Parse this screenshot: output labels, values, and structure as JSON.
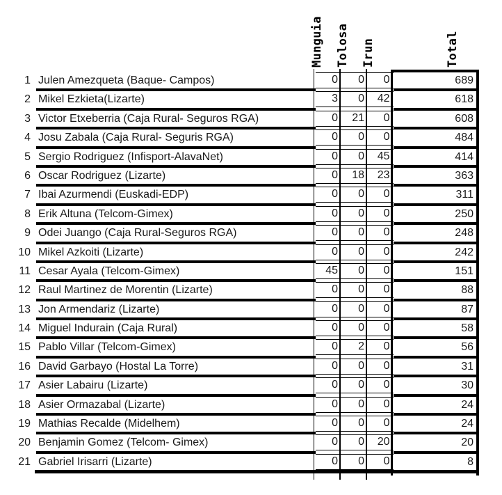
{
  "table": {
    "headers": {
      "munguia": "Munguia",
      "tolosa": "Tolosa",
      "irun": "Irun",
      "total": "Total"
    },
    "rows": [
      {
        "rank": 1,
        "name": "Julen Amezqueta (Baque- Campos)",
        "munguia": 0,
        "tolosa": 0,
        "irun": 0,
        "total": 689
      },
      {
        "rank": 2,
        "name": "Mikel Ezkieta(Lizarte)",
        "munguia": 3,
        "tolosa": 0,
        "irun": 42,
        "total": 618
      },
      {
        "rank": 3,
        "name": "Victor Etxeberria (Caja Rural- Seguros RGA)",
        "munguia": 0,
        "tolosa": 21,
        "irun": 0,
        "total": 608
      },
      {
        "rank": 4,
        "name": "Josu Zabala (Caja Rural- Seguris RGA)",
        "munguia": 0,
        "tolosa": 0,
        "irun": 0,
        "total": 484
      },
      {
        "rank": 5,
        "name": "Sergio Rodriguez (Infisport-AlavaNet)",
        "munguia": 0,
        "tolosa": 0,
        "irun": 45,
        "total": 414
      },
      {
        "rank": 6,
        "name": "Oscar Rodriguez (Lizarte)",
        "munguia": 0,
        "tolosa": 18,
        "irun": 23,
        "total": 363
      },
      {
        "rank": 7,
        "name": "Ibai Azurmendi (Euskadi-EDP)",
        "munguia": 0,
        "tolosa": 0,
        "irun": 0,
        "total": 311
      },
      {
        "rank": 8,
        "name": "Erik Altuna (Telcom-Gimex)",
        "munguia": 0,
        "tolosa": 0,
        "irun": 0,
        "total": 250
      },
      {
        "rank": 9,
        "name": "Odei Juango (Caja Rural-Seguros RGA)",
        "munguia": 0,
        "tolosa": 0,
        "irun": 0,
        "total": 248
      },
      {
        "rank": 10,
        "name": "Mikel Azkoiti (Lizarte)",
        "munguia": 0,
        "tolosa": 0,
        "irun": 0,
        "total": 242
      },
      {
        "rank": 11,
        "name": "Cesar Ayala (Telcom-Gimex)",
        "munguia": 45,
        "tolosa": 0,
        "irun": 0,
        "total": 151
      },
      {
        "rank": 12,
        "name": "Raul Martinez de Morentin (Lizarte)",
        "munguia": 0,
        "tolosa": 0,
        "irun": 0,
        "total": 88
      },
      {
        "rank": 13,
        "name": "Jon Armendariz (Lizarte)",
        "munguia": 0,
        "tolosa": 0,
        "irun": 0,
        "total": 87
      },
      {
        "rank": 14,
        "name": "Miguel Indurain (Caja Rural)",
        "munguia": 0,
        "tolosa": 0,
        "irun": 0,
        "total": 58
      },
      {
        "rank": 15,
        "name": "Pablo Villar (Telcom-Gimex)",
        "munguia": 0,
        "tolosa": 2,
        "irun": 0,
        "total": 56
      },
      {
        "rank": 16,
        "name": "David Garbayo (Hostal La Torre)",
        "munguia": 0,
        "tolosa": 0,
        "irun": 0,
        "total": 31
      },
      {
        "rank": 17,
        "name": "Asier Labairu (Lizarte)",
        "munguia": 0,
        "tolosa": 0,
        "irun": 0,
        "total": 30
      },
      {
        "rank": 18,
        "name": "Asier Ormazabal (Lizarte)",
        "munguia": 0,
        "tolosa": 0,
        "irun": 0,
        "total": 24
      },
      {
        "rank": 19,
        "name": "Mathias Recalde (Midelhem)",
        "munguia": 0,
        "tolosa": 0,
        "irun": 0,
        "total": 24
      },
      {
        "rank": 20,
        "name": "Benjamin Gomez (Telcom- Gimex)",
        "munguia": 0,
        "tolosa": 0,
        "irun": 20,
        "total": 20
      },
      {
        "rank": 21,
        "name": "Gabriel Irisarri (Lizarte)",
        "munguia": 0,
        "tolosa": 0,
        "irun": 0,
        "total": 8
      }
    ]
  },
  "colors": {
    "border": "#000000",
    "text": "#1a1a1a",
    "background": "#ffffff"
  }
}
